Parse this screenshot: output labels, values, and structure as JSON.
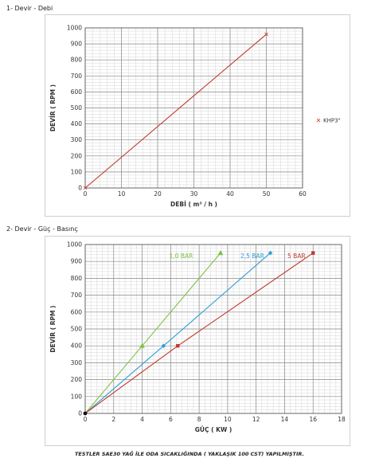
{
  "section1": {
    "title": "1- Devir - Debi"
  },
  "section2": {
    "title": "2- Devir - Güç - Basınç"
  },
  "footnote": "TESTLER SAE30 YAĞ İLE ODA SICAKLIĞINDA ( YAKLAŞIK 100 CST) YAPILMIŞTIR.",
  "chart_data": [
    {
      "type": "line",
      "xlabel": "DEBİ ( m³ / h )",
      "ylabel": "DEVİR ( RPM )",
      "xlim": [
        0,
        60
      ],
      "ylim": [
        0,
        1000
      ],
      "xticks": [
        0,
        10,
        20,
        30,
        40,
        50,
        60
      ],
      "yticks": [
        0,
        100,
        200,
        300,
        400,
        500,
        600,
        700,
        800,
        900,
        1000
      ],
      "grid": true,
      "legend": "right",
      "series": [
        {
          "name": "KHP3\"",
          "color": "#c0392b",
          "x": [
            0,
            50
          ],
          "y": [
            0,
            960
          ]
        }
      ]
    },
    {
      "type": "line",
      "xlabel": "GÜÇ ( KW )",
      "ylabel": "DEVİR ( RPM )",
      "xlim": [
        0,
        18
      ],
      "ylim": [
        0,
        1000
      ],
      "xticks": [
        0,
        2,
        4,
        6,
        8,
        10,
        12,
        14,
        16,
        18
      ],
      "yticks": [
        0,
        100,
        200,
        300,
        400,
        500,
        600,
        700,
        800,
        900,
        1000
      ],
      "grid": true,
      "legend": "none",
      "series": [
        {
          "name": "1,0 BAR",
          "color": "#7dc242",
          "marker": "triangle",
          "x": [
            0,
            4,
            9.5
          ],
          "y": [
            0,
            400,
            950
          ]
        },
        {
          "name": "2,5 BAR",
          "color": "#2e9fd6",
          "marker": "diamond",
          "x": [
            0,
            5.5,
            13
          ],
          "y": [
            0,
            400,
            950
          ]
        },
        {
          "name": "5 BAR",
          "color": "#c0392b",
          "marker": "square",
          "x": [
            0,
            6.5,
            16
          ],
          "y": [
            0,
            400,
            950
          ]
        }
      ]
    }
  ]
}
